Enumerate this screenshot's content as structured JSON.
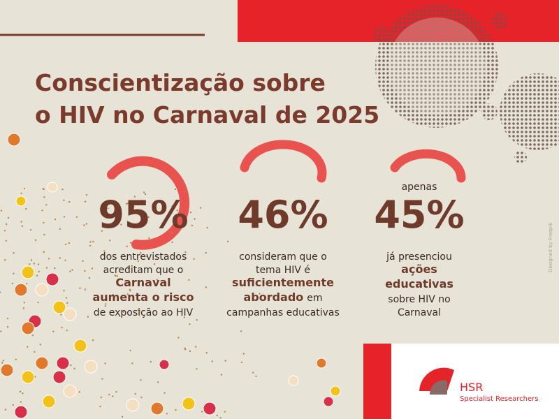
{
  "header": {
    "title_lines": [
      "Conscientização sobre",
      "o HIV no Carnaval de 2025"
    ]
  },
  "stats": [
    {
      "value": "95%",
      "lines": [
        [
          {
            "text": "dos entrevistados"
          }
        ],
        [
          {
            "text": "acreditam que o"
          }
        ],
        [
          {
            "text": "Carnaval",
            "bold": true
          }
        ],
        [
          {
            "text": "aumenta o risco",
            "bold": true
          }
        ],
        [
          {
            "text": "de exposição ao HIV"
          }
        ]
      ]
    },
    {
      "value": "46%",
      "lines": [
        [
          {
            "text": "consideram que o"
          }
        ],
        [
          {
            "text": "tema HIV é"
          }
        ],
        [
          {
            "text": "suficientemente",
            "bold": true
          }
        ],
        [
          {
            "text": "abordado",
            "bold": true
          },
          {
            "text": "em"
          }
        ],
        [
          {
            "text": "campanhas educativas"
          }
        ]
      ]
    },
    {
      "prefix": "apenas",
      "value": "45%",
      "lines": [
        [
          {
            "text": "já presenciou"
          }
        ],
        [
          {
            "text": "ações",
            "bold": true
          }
        ],
        [
          {
            "text": "educativas",
            "bold": true
          }
        ],
        [
          {
            "text": "sobre HIV no"
          }
        ],
        [
          {
            "text": "Carnaval"
          }
        ]
      ]
    }
  ],
  "logo": {
    "name": "HSR",
    "subtitle": "Specialist Researchers"
  },
  "credit": "Designed by Freepik"
}
